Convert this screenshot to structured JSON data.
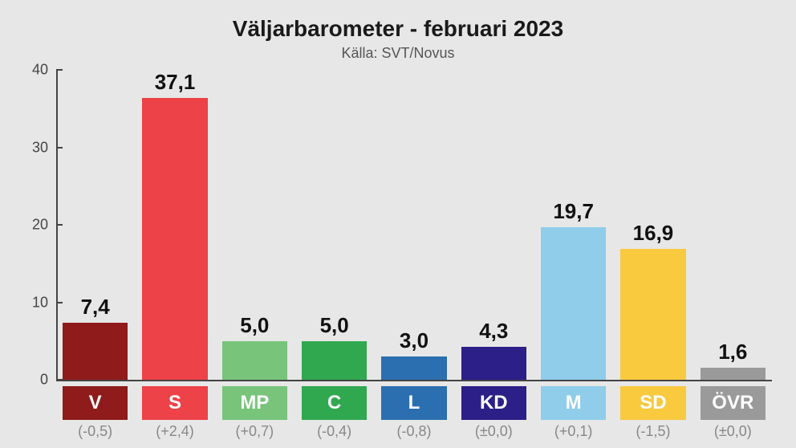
{
  "title": "Väljarbarometer - februari 2023",
  "subtitle": "Källa: SVT/Novus",
  "chart": {
    "type": "bar",
    "ylim": [
      0,
      40
    ],
    "ytick_step": 10,
    "yticks": [
      0,
      10,
      20,
      30,
      40
    ],
    "background_color": "#e7e7e7",
    "axis_color": "#444444",
    "value_fontsize": 26,
    "title_fontsize": 28,
    "subtitle_fontsize": 18,
    "label_fontsize": 24,
    "parties": [
      {
        "code": "V",
        "value": 7.4,
        "value_text": "7,4",
        "change": "(-0,5)",
        "color": "#8f1b1b",
        "text_color": "#ffffff"
      },
      {
        "code": "S",
        "value": 37.1,
        "value_text": "37,1",
        "change": "(+2,4)",
        "color": "#ec4248",
        "text_color": "#ffffff"
      },
      {
        "code": "MP",
        "value": 5.0,
        "value_text": "5,0",
        "change": "(+0,7)",
        "color": "#77c47a",
        "text_color": "#ffffff"
      },
      {
        "code": "C",
        "value": 5.0,
        "value_text": "5,0",
        "change": "(-0,4)",
        "color": "#2fa84f",
        "text_color": "#ffffff"
      },
      {
        "code": "L",
        "value": 3.0,
        "value_text": "3,0",
        "change": "(-0,8)",
        "color": "#2b6fb0",
        "text_color": "#ffffff"
      },
      {
        "code": "KD",
        "value": 4.3,
        "value_text": "4,3",
        "change": "(±0,0)",
        "color": "#2c1f87",
        "text_color": "#ffffff"
      },
      {
        "code": "M",
        "value": 19.7,
        "value_text": "19,7",
        "change": "(+0,1)",
        "color": "#8fcdeb",
        "text_color": "#ffffff"
      },
      {
        "code": "SD",
        "value": 16.9,
        "value_text": "16,9",
        "change": "(-1,5)",
        "color": "#f9c93e",
        "text_color": "#ffffff"
      },
      {
        "code": "ÖVR",
        "value": 1.6,
        "value_text": "1,6",
        "change": "(±0,0)",
        "color": "#9a9a9a",
        "text_color": "#ffffff"
      }
    ]
  }
}
